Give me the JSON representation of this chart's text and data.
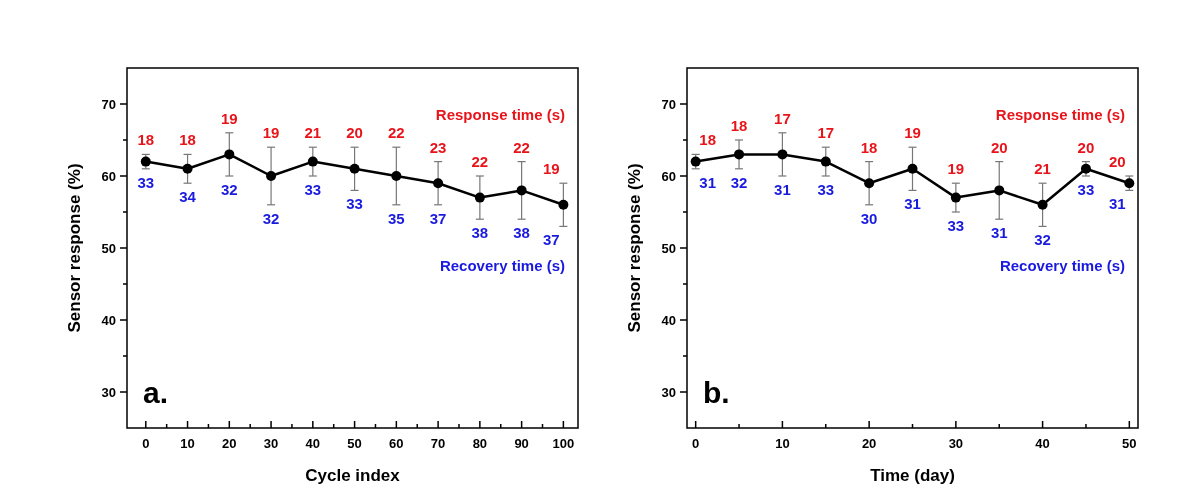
{
  "chart_data": [
    {
      "type": "line",
      "xlabel": "Cycle index",
      "ylabel": "Sensor response (%)",
      "x": [
        0,
        10,
        20,
        30,
        40,
        50,
        60,
        70,
        80,
        90,
        100
      ],
      "series": [
        {
          "color": "#000000",
          "values": [
            62,
            61,
            63,
            60,
            62,
            61,
            60,
            59,
            57,
            58,
            56
          ],
          "errors": [
            1,
            2,
            3,
            4,
            2,
            3,
            4,
            3,
            3,
            4,
            3
          ]
        }
      ],
      "xlim": [
        -4.5,
        103.5
      ],
      "xticks": [
        0,
        {
          "value": 5,
          "label": null
        },
        10,
        {
          "value": 15,
          "label": null
        },
        20,
        {
          "value": 25,
          "label": null
        },
        30,
        {
          "value": 35,
          "label": null
        },
        40,
        {
          "value": 45,
          "label": null
        },
        50,
        {
          "value": 55,
          "label": null
        },
        60,
        {
          "value": 65,
          "label": null
        },
        70,
        {
          "value": 75,
          "label": null
        },
        80,
        {
          "value": 85,
          "label": null
        },
        90,
        {
          "value": 95,
          "label": null
        },
        100
      ],
      "ylim": [
        25,
        75
      ],
      "yticks": [
        30,
        {
          "value": 35,
          "label": null
        },
        40,
        {
          "value": 45,
          "label": null
        },
        50,
        {
          "value": 55,
          "label": null
        },
        60,
        {
          "value": 65,
          "label": null
        },
        70
      ],
      "marker": "circle",
      "line_style": "solid",
      "grid": false,
      "annotations": [
        "a.",
        "Response time (s)",
        {
          "text": "18",
          "x": 0,
          "y": 62
        },
        {
          "text": "18",
          "x": 10,
          "y": 61
        },
        {
          "text": "19",
          "x": 20,
          "y": 63
        },
        {
          "text": "19",
          "x": 30,
          "y": 60
        },
        {
          "text": "21",
          "x": 40,
          "y": 62
        },
        {
          "text": "20",
          "x": 50,
          "y": 61
        },
        {
          "text": "22",
          "x": 60,
          "y": 60
        },
        {
          "text": "23",
          "x": 70,
          "y": 59
        },
        {
          "text": "22",
          "x": 80,
          "y": 57
        },
        {
          "text": "22",
          "x": 90,
          "y": 58
        },
        {
          "text": "19",
          "x": 100,
          "y": 56
        },
        "Recovery time (s)",
        {
          "text": "33",
          "x": 0,
          "y": 62
        },
        {
          "text": "34",
          "x": 10,
          "y": 61
        },
        {
          "text": "32",
          "x": 20,
          "y": 63
        },
        {
          "text": "32",
          "x": 30,
          "y": 60
        },
        {
          "text": "33",
          "x": 40,
          "y": 62
        },
        {
          "text": "33",
          "x": 50,
          "y": 61
        },
        {
          "text": "35",
          "x": 60,
          "y": 60
        },
        {
          "text": "37",
          "x": 70,
          "y": 59
        },
        {
          "text": "38",
          "x": 80,
          "y": 57
        },
        {
          "text": "38",
          "x": 90,
          "y": 58
        },
        {
          "text": "37",
          "x": 100,
          "y": 56
        }
      ]
    },
    {
      "type": "line",
      "xlabel": "Time (day)",
      "ylabel": "Sensor response (%)",
      "x": [
        0,
        5,
        10,
        15,
        20,
        25,
        30,
        35,
        40,
        45,
        50
      ],
      "series": [
        {
          "color": "#000000",
          "values": [
            62,
            63,
            63,
            62,
            59,
            61,
            57,
            58,
            56,
            61,
            59
          ],
          "errors": [
            1,
            2,
            3,
            2,
            3,
            3,
            2,
            4,
            3,
            1,
            1
          ]
        }
      ],
      "xlim": [
        -1,
        51
      ],
      "xticks": [
        0,
        {
          "value": 5,
          "label": null
        },
        10,
        {
          "value": 15,
          "label": null
        },
        20,
        {
          "value": 25,
          "label": null
        },
        30,
        {
          "value": 35,
          "label": null
        },
        40,
        {
          "value": 45,
          "label": null
        },
        50
      ],
      "ylim": [
        25,
        75
      ],
      "yticks": [
        30,
        {
          "value": 35,
          "label": null
        },
        40,
        {
          "value": 45,
          "label": null
        },
        50,
        {
          "value": 55,
          "label": null
        },
        60,
        {
          "value": 65,
          "label": null
        },
        70
      ],
      "marker": "circle",
      "line_style": "solid",
      "grid": false,
      "annotations": [
        "b.",
        "Response time (s)",
        {
          "text": "18",
          "x": 0,
          "y": 62
        },
        {
          "text": "18",
          "x": 5,
          "y": 63
        },
        {
          "text": "17",
          "x": 10,
          "y": 63
        },
        {
          "text": "17",
          "x": 15,
          "y": 62
        },
        {
          "text": "18",
          "x": 20,
          "y": 59
        },
        {
          "text": "19",
          "x": 25,
          "y": 61
        },
        {
          "text": "19",
          "x": 30,
          "y": 57
        },
        {
          "text": "20",
          "x": 35,
          "y": 58
        },
        {
          "text": "21",
          "x": 40,
          "y": 56
        },
        {
          "text": "20",
          "x": 45,
          "y": 61
        },
        {
          "text": "20",
          "x": 50,
          "y": 59
        },
        "Recovery time (s)",
        {
          "text": "31",
          "x": 0,
          "y": 62
        },
        {
          "text": "32",
          "x": 5,
          "y": 63
        },
        {
          "text": "31",
          "x": 10,
          "y": 63
        },
        {
          "text": "33",
          "x": 15,
          "y": 62
        },
        {
          "text": "30",
          "x": 20,
          "y": 59
        },
        {
          "text": "31",
          "x": 25,
          "y": 61
        },
        {
          "text": "33",
          "x": 30,
          "y": 57
        },
        {
          "text": "31",
          "x": 35,
          "y": 58
        },
        {
          "text": "32",
          "x": 40,
          "y": 56
        },
        {
          "text": "33",
          "x": 45,
          "y": 61
        },
        {
          "text": "31",
          "x": 50,
          "y": 59
        }
      ]
    }
  ]
}
